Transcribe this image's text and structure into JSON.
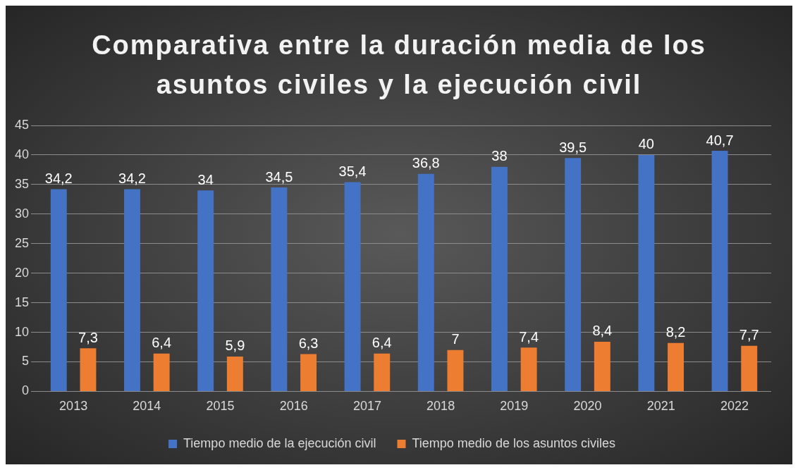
{
  "chart_data": {
    "type": "bar",
    "title": "Comparativa entre la duración media de los asuntos civiles y la ejecución civil",
    "categories": [
      "2013",
      "2014",
      "2015",
      "2016",
      "2017",
      "2018",
      "2019",
      "2020",
      "2021",
      "2022"
    ],
    "series": [
      {
        "name": "Tiempo medio de la ejecución civil",
        "color": "#4472c4",
        "values": [
          34.2,
          34.2,
          34,
          34.5,
          35.4,
          36.8,
          38,
          39.5,
          40,
          40.7
        ],
        "value_labels": [
          "34,2",
          "34,2",
          "34",
          "34,5",
          "35,4",
          "36,8",
          "38",
          "39,5",
          "40",
          "40,7"
        ]
      },
      {
        "name": "Tiempo medio de los asuntos civiles",
        "color": "#ed7d31",
        "values": [
          7.3,
          6.4,
          5.9,
          6.3,
          6.4,
          7,
          7.4,
          8.4,
          8.2,
          7.7
        ],
        "value_labels": [
          "7,3",
          "6,4",
          "5,9",
          "6,3",
          "6,4",
          "7",
          "7,4",
          "8,4",
          "8,2",
          "7,7"
        ]
      }
    ],
    "ylim": [
      0,
      45
    ],
    "yticks": [
      0,
      5,
      10,
      15,
      20,
      25,
      30,
      35,
      40,
      45
    ],
    "grid": "y",
    "legend": "bottom"
  }
}
